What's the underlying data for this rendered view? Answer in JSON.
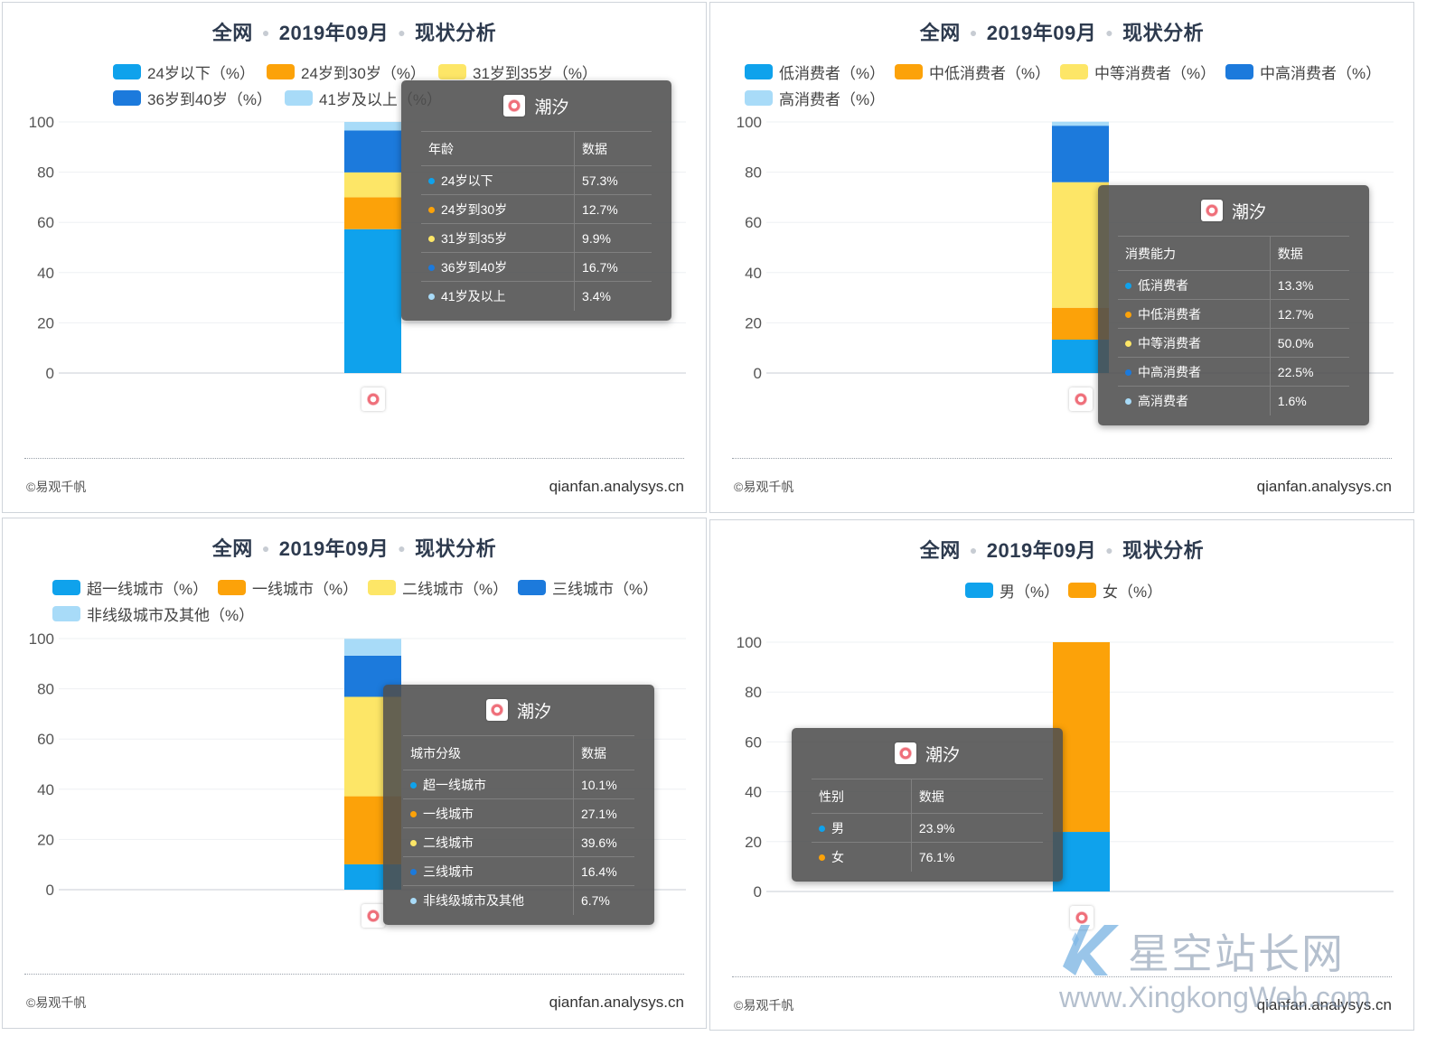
{
  "common": {
    "title_scope": "全网",
    "title_month": "2019年09月",
    "title_analysis": "现状分析",
    "footer_left": "©易观千帆",
    "footer_right": "qianfan.analysys.cn",
    "app_name": "潮汐",
    "tooltip_value_header": "数据",
    "yticks": [
      "100",
      "80",
      "60",
      "40",
      "20",
      "0"
    ]
  },
  "watermark": {
    "cn": "星空站长网",
    "en": "www.XingkongWeb.com"
  },
  "chart_data": [
    {
      "type": "bar",
      "stacked": true,
      "categories": [
        "潮汐"
      ],
      "ylim": [
        0,
        100
      ],
      "tooltip_header": "年龄",
      "legend": [
        "24岁以下（%）",
        "24岁到30岁（%）",
        "31岁到35岁（%）",
        "36岁到40岁（%）",
        "41岁及以上（%）"
      ],
      "series": [
        {
          "name": "24岁以下",
          "color": "#0fa2ec",
          "values": [
            57.3
          ],
          "label": "57.3%"
        },
        {
          "name": "24岁到30岁",
          "color": "#fca209",
          "values": [
            12.7
          ],
          "label": "12.7%"
        },
        {
          "name": "31岁到35岁",
          "color": "#fde667",
          "values": [
            9.9
          ],
          "label": "9.9%"
        },
        {
          "name": "36岁到40岁",
          "color": "#1c7adc",
          "values": [
            16.7
          ],
          "label": "16.7%"
        },
        {
          "name": "41岁及以上",
          "color": "#a8dbf8",
          "values": [
            3.4
          ],
          "label": "3.4%"
        }
      ]
    },
    {
      "type": "bar",
      "stacked": true,
      "categories": [
        "潮汐"
      ],
      "ylim": [
        0,
        100
      ],
      "tooltip_header": "消费能力",
      "legend": [
        "低消费者（%）",
        "中低消费者（%）",
        "中等消费者（%）",
        "中高消费者（%）",
        "高消费者（%）"
      ],
      "series": [
        {
          "name": "低消费者",
          "color": "#0fa2ec",
          "values": [
            13.3
          ],
          "label": "13.3%"
        },
        {
          "name": "中低消费者",
          "color": "#fca209",
          "values": [
            12.7
          ],
          "label": "12.7%"
        },
        {
          "name": "中等消费者",
          "color": "#fde667",
          "values": [
            50.0
          ],
          "label": "50.0%"
        },
        {
          "name": "中高消费者",
          "color": "#1c7adc",
          "values": [
            22.5
          ],
          "label": "22.5%"
        },
        {
          "name": "高消费者",
          "color": "#a8dbf8",
          "values": [
            1.6
          ],
          "label": "1.6%"
        }
      ]
    },
    {
      "type": "bar",
      "stacked": true,
      "categories": [
        "潮汐"
      ],
      "ylim": [
        0,
        100
      ],
      "tooltip_header": "城市分级",
      "legend": [
        "超一线城市（%）",
        "一线城市（%）",
        "二线城市（%）",
        "三线城市（%）",
        "非线级城市及其他（%）"
      ],
      "series": [
        {
          "name": "超一线城市",
          "color": "#0fa2ec",
          "values": [
            10.1
          ],
          "label": "10.1%"
        },
        {
          "name": "一线城市",
          "color": "#fca209",
          "values": [
            27.1
          ],
          "label": "27.1%"
        },
        {
          "name": "二线城市",
          "color": "#fde667",
          "values": [
            39.6
          ],
          "label": "39.6%"
        },
        {
          "name": "三线城市",
          "color": "#1c7adc",
          "values": [
            16.4
          ],
          "label": "16.4%"
        },
        {
          "name": "非线级城市及其他",
          "color": "#a8dbf8",
          "values": [
            6.7
          ],
          "label": "6.7%"
        }
      ]
    },
    {
      "type": "bar",
      "stacked": true,
      "categories": [
        "潮汐"
      ],
      "ylim": [
        0,
        100
      ],
      "tooltip_header": "性别",
      "legend": [
        "男（%）",
        "女（%）"
      ],
      "series": [
        {
          "name": "男",
          "color": "#0fa2ec",
          "values": [
            23.9
          ],
          "label": "23.9%"
        },
        {
          "name": "女",
          "color": "#fca209",
          "values": [
            76.1
          ],
          "label": "76.1%"
        }
      ]
    }
  ]
}
